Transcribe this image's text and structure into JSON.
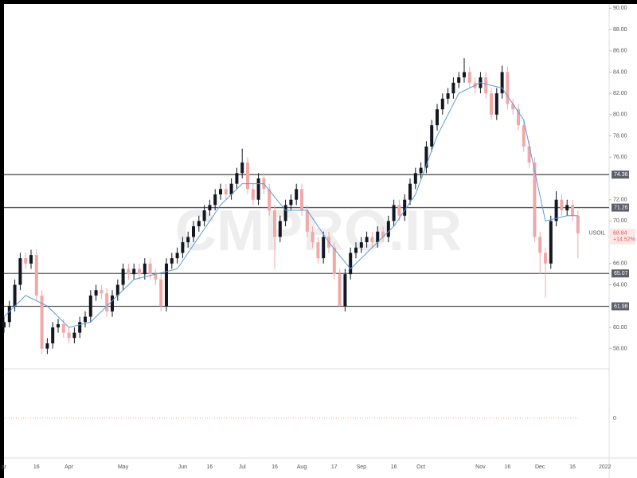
{
  "chart_data": {
    "type": "candlestick",
    "watermark": "CMPRO.IR",
    "categories": [
      "ar",
      null,
      null,
      null,
      null,
      null,
      "16",
      null,
      null,
      null,
      null,
      null,
      "Apr",
      null,
      null,
      null,
      null,
      null,
      null,
      null,
      null,
      null,
      "May",
      null,
      null,
      null,
      null,
      null,
      null,
      null,
      null,
      null,
      null,
      "Jun",
      null,
      null,
      null,
      null,
      "16",
      null,
      null,
      null,
      null,
      null,
      "Jul",
      null,
      null,
      null,
      null,
      null,
      "16",
      null,
      null,
      null,
      null,
      "Aug",
      null,
      null,
      null,
      null,
      null,
      "17",
      null,
      null,
      null,
      null,
      "Sep",
      null,
      null,
      null,
      null,
      null,
      "16",
      null,
      null,
      null,
      null,
      "Oct",
      null,
      null,
      null,
      null,
      null,
      null,
      null,
      null,
      null,
      null,
      "Nov",
      null,
      null,
      null,
      null,
      "16",
      null,
      null,
      null,
      null,
      null,
      "Dec",
      null,
      null,
      null,
      null,
      null,
      "16",
      null,
      null,
      null,
      null,
      null,
      "2022"
    ],
    "open": [
      60,
      60.5,
      62,
      64,
      66.5,
      66,
      66.8,
      63,
      58,
      58.5,
      60,
      60.3,
      59.5,
      59,
      59.5,
      60.5,
      61,
      63,
      63.5,
      63.2,
      61.5,
      63,
      64,
      65.5,
      65,
      65.5,
      65,
      66,
      65,
      64.5,
      62,
      66,
      66.5,
      67,
      68,
      68.5,
      69.5,
      70,
      71,
      71.5,
      72.5,
      73,
      72.5,
      73.5,
      74.5,
      75.5,
      73,
      72,
      74,
      73,
      71,
      68.5,
      70,
      71.5,
      72,
      73,
      71,
      69,
      68,
      66.5,
      68.5,
      67.5,
      65,
      62,
      65,
      67,
      67.5,
      68,
      68.5,
      68,
      69,
      68.5,
      70,
      71.5,
      70.5,
      72,
      73.5,
      74.5,
      75,
      77,
      79,
      80.5,
      81.5,
      82,
      83,
      83.5,
      84,
      83,
      82.5,
      83.5,
      82,
      80,
      82,
      84,
      81,
      80.5,
      79,
      77,
      75.5,
      68.5,
      67,
      66,
      70,
      72,
      71,
      71.5,
      70.5,
      null,
      null,
      null,
      null,
      null
    ],
    "high": [
      61,
      62.5,
      64.5,
      67,
      67,
      67.3,
      67.3,
      63.5,
      59,
      60.5,
      60.8,
      60.8,
      60,
      60,
      61,
      61.5,
      63.5,
      64,
      64,
      63.7,
      63.5,
      64.5,
      66,
      66,
      66,
      66,
      66.5,
      66.5,
      65.5,
      65,
      66.5,
      67,
      67.5,
      68.5,
      69,
      70,
      70.5,
      71.5,
      72,
      73,
      73.5,
      73.5,
      74,
      75,
      76.8,
      76,
      73.5,
      74.5,
      74.5,
      73.5,
      71.5,
      70.5,
      72,
      72.5,
      73.5,
      73.5,
      71.5,
      69.5,
      68.5,
      69,
      69,
      68,
      65.5,
      65.5,
      67.5,
      68,
      68.5,
      69,
      69,
      69.5,
      69.5,
      70.5,
      72,
      72,
      72.5,
      74,
      75,
      75.5,
      77.5,
      79.5,
      81,
      82,
      82.5,
      83.5,
      84,
      85.3,
      84.5,
      83.5,
      84,
      84,
      82.5,
      82.5,
      84.6,
      84.5,
      81.5,
      81,
      79.5,
      77.5,
      76,
      69,
      67.5,
      70.5,
      72.8,
      72.5,
      72,
      72,
      71,
      null,
      null,
      null,
      null,
      null
    ],
    "low": [
      59.5,
      60,
      61.5,
      63.5,
      65.5,
      65.5,
      62.5,
      57.5,
      57.5,
      58,
      59.5,
      59,
      58.5,
      58.5,
      59,
      60,
      60.5,
      62.5,
      62.7,
      61,
      61,
      62.5,
      63.5,
      64.5,
      64.5,
      64.5,
      64.5,
      64.5,
      64,
      61.5,
      61.5,
      65.5,
      66,
      66.5,
      67.5,
      68,
      69,
      69.5,
      70.5,
      71,
      72,
      72,
      72,
      73,
      74,
      72.5,
      71.5,
      71.5,
      72.5,
      70.5,
      65.5,
      68,
      69.5,
      71,
      71.5,
      70.5,
      68.5,
      67.5,
      66,
      66,
      67,
      64.5,
      61.98,
      61.5,
      64.5,
      66.5,
      67,
      67.5,
      67.5,
      67.5,
      68,
      68,
      69.5,
      70,
      70,
      71.5,
      73,
      74,
      74.5,
      76.5,
      78.5,
      80,
      81,
      81.5,
      82.5,
      83,
      82.5,
      82,
      82,
      81.5,
      79.5,
      79.5,
      81.5,
      80.5,
      80,
      78.5,
      76.5,
      75,
      68,
      65,
      62.8,
      65.5,
      69.5,
      70.5,
      70.5,
      70,
      66.5,
      null,
      null,
      null,
      null,
      null
    ],
    "close": [
      60.5,
      62,
      64,
      66.5,
      66,
      66.8,
      63,
      58,
      58.5,
      60,
      60.3,
      59.5,
      59,
      59.5,
      60.5,
      61,
      63,
      63.5,
      63.2,
      61.5,
      63,
      64,
      65.5,
      65,
      65.5,
      65,
      66,
      65,
      64.5,
      62,
      66,
      66.5,
      67,
      68,
      68.5,
      69.5,
      70,
      71,
      71.5,
      72.5,
      73,
      72.5,
      73.5,
      74.5,
      75.5,
      73,
      72,
      74,
      73,
      71,
      68.5,
      70,
      71.5,
      72,
      73,
      71,
      69,
      68,
      66.5,
      68.5,
      67.5,
      65,
      62,
      65,
      67,
      67.5,
      68,
      68.5,
      68,
      69,
      68.5,
      70,
      71.5,
      70.5,
      72,
      73.5,
      74.5,
      75,
      77,
      79,
      80.5,
      81.5,
      82,
      83,
      83.5,
      84,
      83,
      82.5,
      83.5,
      82,
      80,
      82,
      84,
      81,
      80.5,
      79,
      77,
      75.5,
      68.5,
      67,
      66,
      70,
      72,
      71,
      71.5,
      70.5,
      68.84,
      null,
      null,
      null,
      null,
      null
    ],
    "up_color": "#131722",
    "down_color": "#f0a8a8",
    "ma": {
      "color": "#5b9bd5",
      "x": [
        0,
        4,
        8,
        12,
        16,
        20,
        24,
        28,
        32,
        36,
        40,
        44,
        48,
        52,
        56,
        60,
        64,
        68,
        72,
        76,
        80,
        84,
        88,
        92,
        96,
        100,
        104,
        106
      ],
      "values": [
        61,
        63,
        62,
        60,
        60.5,
        62.5,
        64.5,
        65,
        65.5,
        68.5,
        71.5,
        73.5,
        73.5,
        71,
        71,
        68,
        65.5,
        67.5,
        69.5,
        72.5,
        78,
        82,
        83,
        82.5,
        79.5,
        70,
        70.5,
        70.5
      ]
    },
    "levels": [
      74.36,
      71.26,
      65.07,
      61.98
    ],
    "last": {
      "name": "USOIL",
      "value": 68.84,
      "change": "+14.52%"
    },
    "ylim": [
      56.1,
      90.4
    ],
    "yticks": [
      {
        "value": 90,
        "label": "90.00"
      },
      {
        "value": 88,
        "label": "88.00"
      },
      {
        "value": 86,
        "label": "86.00"
      },
      {
        "value": 84,
        "label": "84.00"
      },
      {
        "value": 82,
        "label": "82.00"
      },
      {
        "value": 80,
        "label": "80.00"
      },
      {
        "value": 78,
        "label": "78.00"
      },
      {
        "value": 76,
        "label": "76.00"
      },
      {
        "value": 72,
        "label": "72.00"
      },
      {
        "value": 70,
        "label": "70.00"
      },
      {
        "value": 66,
        "label": "66.00"
      },
      {
        "value": 64,
        "label": "64.00"
      },
      {
        "value": 60,
        "label": "60.00"
      },
      {
        "value": 58,
        "label": "58.00"
      }
    ],
    "panel2": {
      "ylim": [
        -1,
        1
      ],
      "yticks": [
        0
      ]
    }
  }
}
